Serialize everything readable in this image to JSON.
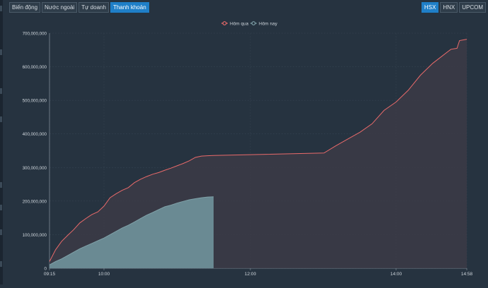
{
  "tabs": [
    {
      "label": "Biến động",
      "active": false
    },
    {
      "label": "Nước ngoài",
      "active": false
    },
    {
      "label": "Tự doanh",
      "active": false
    },
    {
      "label": "Thanh khoản",
      "active": true
    }
  ],
  "exchanges": [
    {
      "label": "HSX",
      "active": true
    },
    {
      "label": "HNX",
      "active": false
    },
    {
      "label": "UPCOM",
      "active": false
    }
  ],
  "colors": {
    "yesterday_line": "#e96a6a",
    "yesterday_fill": "#3c3b47",
    "today_fill": "#6a8a93",
    "today_line": "#7fa1a8",
    "accent": "#1f7fc8"
  },
  "chart_data": {
    "type": "area",
    "title": "",
    "xlabel": "",
    "ylabel": "",
    "x_ticks": [
      "09:15",
      "10:00",
      "12:00",
      "14:00",
      "14:58"
    ],
    "xlim": [
      "09:15",
      "14:58"
    ],
    "ylim": [
      0,
      700000000
    ],
    "y_ticks": [
      "0",
      "100,000,000",
      "200,000,000",
      "300,000,000",
      "400,000,000",
      "500,000,000",
      "600,000,000",
      "700,000,000"
    ],
    "grid": true,
    "legend": "top-center",
    "series": [
      {
        "name": "Hôm qua",
        "x": [
          "09:15",
          "09:20",
          "09:25",
          "09:30",
          "09:35",
          "09:40",
          "09:45",
          "09:50",
          "09:55",
          "10:00",
          "10:05",
          "10:10",
          "10:15",
          "10:20",
          "10:25",
          "10:30",
          "10:35",
          "10:40",
          "10:45",
          "10:50",
          "10:55",
          "11:00",
          "11:05",
          "11:10",
          "11:15",
          "11:20",
          "11:25",
          "11:30",
          "13:00",
          "13:10",
          "13:20",
          "13:30",
          "13:40",
          "13:50",
          "14:00",
          "14:10",
          "14:20",
          "14:30",
          "14:45",
          "14:50",
          "14:52",
          "14:58"
        ],
        "values": [
          20000000,
          55000000,
          80000000,
          98000000,
          115000000,
          135000000,
          148000000,
          160000000,
          168000000,
          185000000,
          210000000,
          222000000,
          232000000,
          240000000,
          255000000,
          265000000,
          273000000,
          280000000,
          285000000,
          292000000,
          298000000,
          305000000,
          312000000,
          320000000,
          330000000,
          334000000,
          335000000,
          336000000,
          343000000,
          365000000,
          385000000,
          405000000,
          430000000,
          470000000,
          495000000,
          530000000,
          575000000,
          610000000,
          652000000,
          655000000,
          678000000,
          682000000
        ]
      },
      {
        "name": "Hôm nay",
        "x": [
          "09:15",
          "09:20",
          "09:25",
          "09:30",
          "09:35",
          "09:40",
          "09:45",
          "09:50",
          "09:55",
          "10:00",
          "10:05",
          "10:10",
          "10:15",
          "10:20",
          "10:25",
          "10:30",
          "10:35",
          "10:40",
          "10:45",
          "10:50",
          "10:55",
          "11:00",
          "11:05",
          "11:10",
          "11:15",
          "11:20",
          "11:25",
          "11:30"
        ],
        "values": [
          10000000,
          20000000,
          28000000,
          38000000,
          48000000,
          58000000,
          66000000,
          74000000,
          82000000,
          90000000,
          100000000,
          110000000,
          120000000,
          128000000,
          138000000,
          148000000,
          158000000,
          166000000,
          175000000,
          183000000,
          188000000,
          194000000,
          199000000,
          204000000,
          207000000,
          210000000,
          212000000,
          213000000
        ]
      }
    ]
  }
}
